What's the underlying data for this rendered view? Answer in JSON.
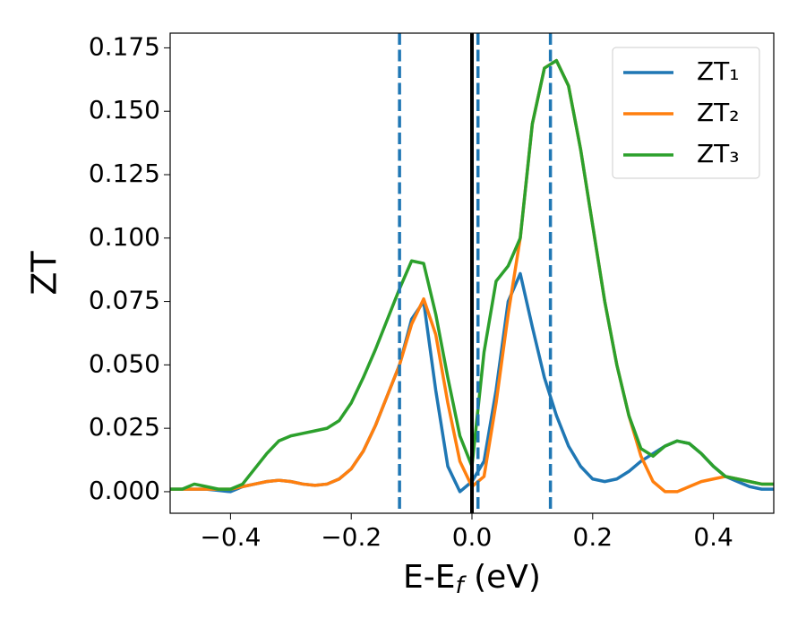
{
  "chart_data": {
    "type": "line",
    "x_label": [
      "E-E",
      "f",
      " (eV)"
    ],
    "y_label": "ZT",
    "x": [
      -0.5,
      -0.48,
      -0.46,
      -0.44,
      -0.42,
      -0.4,
      -0.38,
      -0.36,
      -0.34,
      -0.32,
      -0.3,
      -0.28,
      -0.26,
      -0.24,
      -0.22,
      -0.2,
      -0.18,
      -0.16,
      -0.14,
      -0.12,
      -0.1,
      -0.08,
      -0.06,
      -0.04,
      -0.02,
      0.0,
      0.02,
      0.04,
      0.06,
      0.08,
      0.1,
      0.12,
      0.14,
      0.16,
      0.18,
      0.2,
      0.22,
      0.24,
      0.26,
      0.28,
      0.3,
      0.32,
      0.34,
      0.36,
      0.38,
      0.4,
      0.42,
      0.44,
      0.46,
      0.48,
      0.5
    ],
    "series": [
      {
        "name": "ZT₁",
        "color": "#1f77b4",
        "values": [
          0.001,
          0.001,
          0.001,
          0.001,
          0.0005,
          0.0,
          0.002,
          0.003,
          0.004,
          0.0045,
          0.004,
          0.003,
          0.0025,
          0.003,
          0.005,
          0.009,
          0.016,
          0.026,
          0.038,
          0.05,
          0.068,
          0.075,
          0.04,
          0.01,
          0.0,
          0.004,
          0.012,
          0.04,
          0.075,
          0.086,
          0.065,
          0.045,
          0.03,
          0.018,
          0.01,
          0.005,
          0.004,
          0.005,
          0.008,
          0.012,
          0.015,
          0.018,
          0.02,
          0.019,
          0.015,
          0.01,
          0.006,
          0.004,
          0.002,
          0.001,
          0.001
        ]
      },
      {
        "name": "ZT₂",
        "color": "#ff7f0e",
        "values": [
          0.001,
          0.001,
          0.001,
          0.001,
          0.001,
          0.001,
          0.002,
          0.003,
          0.004,
          0.0045,
          0.004,
          0.003,
          0.0025,
          0.003,
          0.005,
          0.009,
          0.016,
          0.026,
          0.038,
          0.05,
          0.066,
          0.076,
          0.062,
          0.035,
          0.012,
          0.002,
          0.006,
          0.035,
          0.07,
          0.1,
          0.145,
          0.167,
          0.17,
          0.16,
          0.135,
          0.105,
          0.075,
          0.05,
          0.03,
          0.014,
          0.004,
          0.0,
          0.0,
          0.002,
          0.004,
          0.005,
          0.006,
          0.005,
          0.004,
          0.003,
          0.003
        ]
      },
      {
        "name": "ZT₃",
        "color": "#2ca02c",
        "values": [
          0.001,
          0.001,
          0.003,
          0.002,
          0.001,
          0.001,
          0.003,
          0.009,
          0.015,
          0.02,
          0.022,
          0.023,
          0.024,
          0.025,
          0.028,
          0.035,
          0.045,
          0.056,
          0.068,
          0.08,
          0.091,
          0.09,
          0.07,
          0.045,
          0.022,
          0.01,
          0.055,
          0.083,
          0.089,
          0.1,
          0.145,
          0.167,
          0.17,
          0.16,
          0.135,
          0.105,
          0.075,
          0.05,
          0.03,
          0.017,
          0.014,
          0.018,
          0.02,
          0.019,
          0.015,
          0.01,
          0.006,
          0.005,
          0.004,
          0.003,
          0.003
        ]
      }
    ],
    "vertical_lines": [
      {
        "x": -0.12,
        "color": "#1f77b4",
        "style": "dashed"
      },
      {
        "x": 0.01,
        "color": "#1f77b4",
        "style": "dashed"
      },
      {
        "x": 0.13,
        "color": "#1f77b4",
        "style": "dashed"
      },
      {
        "x": 0.0,
        "color": "#000000",
        "style": "solid"
      }
    ],
    "xlim": [
      -0.5,
      0.5
    ],
    "ylim": [
      -0.0085,
      0.1808
    ],
    "xticks": [
      {
        "value": -0.4,
        "label": "−0.4"
      },
      {
        "value": -0.2,
        "label": "−0.2"
      },
      {
        "value": 0.0,
        "label": "0.0"
      },
      {
        "value": 0.2,
        "label": "0.2"
      },
      {
        "value": 0.4,
        "label": "0.4"
      }
    ],
    "yticks": [
      {
        "value": 0.0,
        "label": "0.000"
      },
      {
        "value": 0.025,
        "label": "0.025"
      },
      {
        "value": 0.05,
        "label": "0.050"
      },
      {
        "value": 0.075,
        "label": "0.075"
      },
      {
        "value": 0.1,
        "label": "0.100"
      },
      {
        "value": 0.125,
        "label": "0.125"
      },
      {
        "value": 0.15,
        "label": "0.150"
      },
      {
        "value": 0.175,
        "label": "0.175"
      }
    ],
    "grid": false,
    "legend": "upper right"
  }
}
